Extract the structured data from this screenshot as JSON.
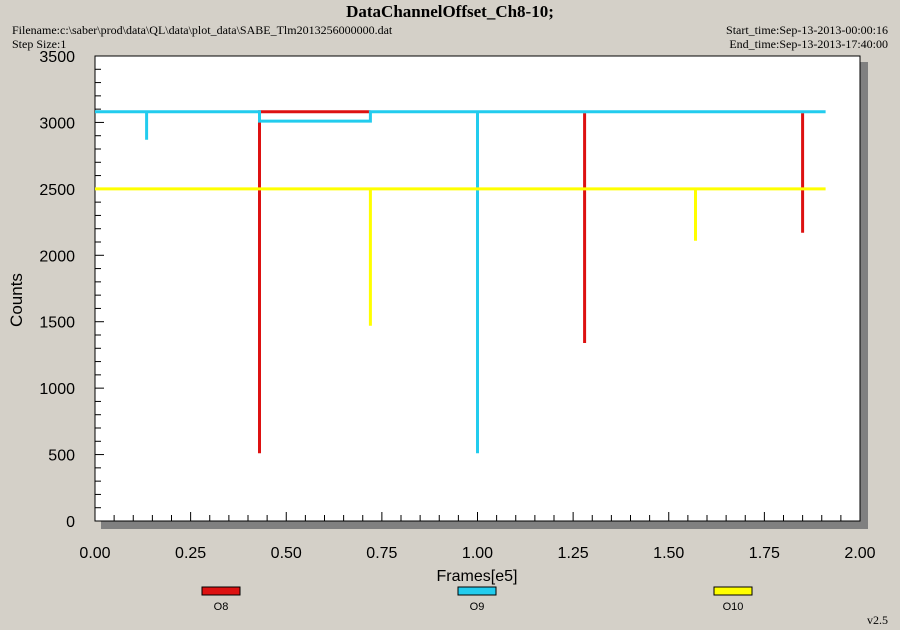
{
  "header": {
    "title": "DataChannelOffset_Ch8-10;",
    "filename": "Filename:c:\\saber\\prod\\data\\QL\\data\\plot_data\\SABE_Tlm2013256000000.dat",
    "step_size": "Step Size:1",
    "start_time": "Start_time:Sep-13-2013-00:00:16",
    "end_time": "End_time:Sep-13-2013-17:40:00"
  },
  "version": "v2.5",
  "colors": {
    "O8": "#dd1111",
    "O9": "#22ccee",
    "O10": "#ffff00",
    "plot_bg": "#ffffff",
    "shadow": "#808080"
  },
  "chart_data": {
    "type": "line",
    "xlabel": "Frames[e5]",
    "ylabel": "Counts",
    "xlim": [
      0,
      2.0
    ],
    "ylim": [
      0,
      3500
    ],
    "x_ticks": [
      "0.00",
      "0.25",
      "0.50",
      "0.75",
      "1.00",
      "1.25",
      "1.50",
      "1.75",
      "2.00"
    ],
    "y_ticks": [
      "0",
      "500",
      "1000",
      "1500",
      "2000",
      "2500",
      "3000",
      "3500"
    ],
    "legend_position": "bottom",
    "series": [
      {
        "name": "O8",
        "color": "#dd1111",
        "x": [
          0.43,
          0.43,
          0.43,
          0.43,
          0.72,
          0.72,
          1.28,
          1.28,
          1.28,
          1.85,
          1.85,
          1.85
        ],
        "y": [
          3080,
          510,
          3080,
          3080,
          3080,
          3080,
          null,
          3070,
          1340,
          null,
          3070,
          2170
        ]
      },
      {
        "name": "O9",
        "color": "#22ccee",
        "x": [
          0.0,
          0.135,
          0.135,
          0.135,
          0.43,
          0.43,
          0.43,
          0.72,
          0.72,
          0.72,
          1.0,
          1.0,
          1.0,
          1.91
        ],
        "y": [
          3080,
          3080,
          2870,
          3080,
          3080,
          3010,
          3010,
          3010,
          3080,
          3080,
          3080,
          510,
          3080,
          3080
        ]
      },
      {
        "name": "O10",
        "color": "#ffff00",
        "x": [
          0.0,
          0.72,
          0.72,
          0.72,
          1.57,
          1.57,
          1.57,
          1.91
        ],
        "y": [
          2500,
          2500,
          1470,
          2500,
          2500,
          2110,
          2500,
          2500
        ]
      }
    ]
  }
}
